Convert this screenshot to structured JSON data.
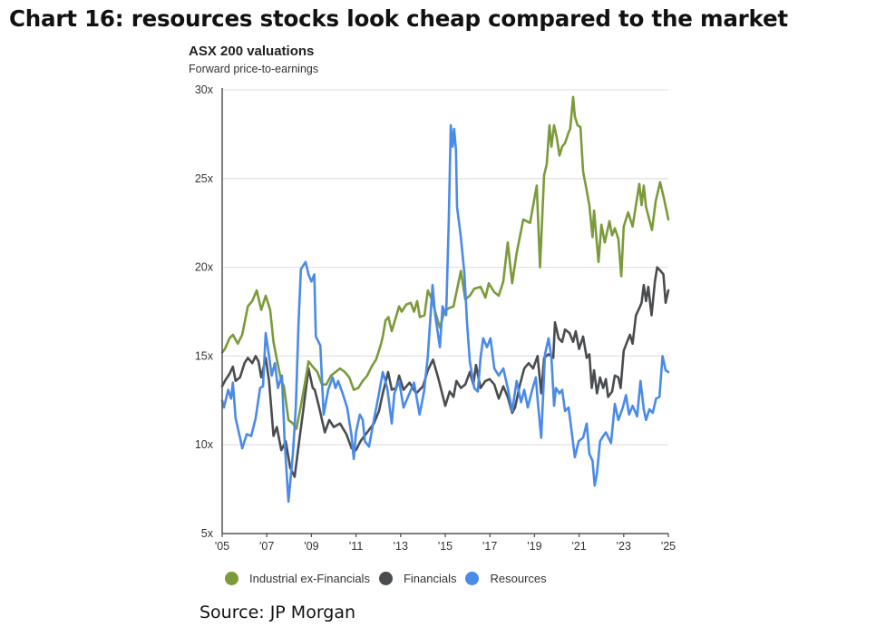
{
  "page": {
    "title": "Chart 16: resources stocks look cheap compared to the market",
    "source": "Source: JP Morgan"
  },
  "chart_data": {
    "type": "line",
    "title": "ASX 200 valuations",
    "subtitle": "Forward price-to-earnings",
    "xlabel": "",
    "ylabel": "",
    "xlim": [
      2005,
      2025
    ],
    "ylim": [
      5,
      30
    ],
    "grid": true,
    "legend_position": "bottom",
    "x_ticks": [
      2005,
      2007,
      2009,
      2011,
      2013,
      2015,
      2017,
      2019,
      2021,
      2023,
      2025
    ],
    "x_tick_labels": [
      "'05",
      "'07",
      "'09",
      "'11",
      "'13",
      "'15",
      "'17",
      "'19",
      "'21",
      "'23",
      "'25"
    ],
    "y_ticks": [
      5,
      10,
      15,
      20,
      25,
      30
    ],
    "y_tick_labels": [
      "5x",
      "10x",
      "15x",
      "20x",
      "25x",
      "30x"
    ],
    "series": [
      {
        "name": "Industrial ex-Financials",
        "color": "#7b9a3a",
        "x": [
          2005.0,
          2005.12,
          2005.33,
          2005.48,
          2005.7,
          2005.9,
          2006.15,
          2006.35,
          2006.55,
          2006.75,
          2006.95,
          2007.15,
          2007.3,
          2007.45,
          2007.65,
          2007.77,
          2007.97,
          2008.17,
          2008.33,
          2008.53,
          2008.74,
          2008.87,
          2009.06,
          2009.27,
          2009.47,
          2009.67,
          2009.88,
          2010.08,
          2010.28,
          2010.5,
          2010.7,
          2010.9,
          2011.1,
          2011.3,
          2011.5,
          2011.7,
          2011.9,
          2012.1,
          2012.2,
          2012.32,
          2012.45,
          2012.6,
          2012.72,
          2012.93,
          2013.05,
          2013.25,
          2013.45,
          2013.6,
          2013.74,
          2013.86,
          2014.07,
          2014.22,
          2014.43,
          2014.55,
          2014.76,
          2014.96,
          2015.16,
          2015.37,
          2015.57,
          2015.7,
          2015.9,
          2016.1,
          2016.3,
          2016.58,
          2016.8,
          2016.95,
          2017.2,
          2017.4,
          2017.6,
          2017.8,
          2018.0,
          2018.2,
          2018.5,
          2018.8,
          2019.0,
          2019.1,
          2019.25,
          2019.43,
          2019.55,
          2019.67,
          2019.76,
          2019.88,
          2020.0,
          2020.12,
          2020.24,
          2020.37,
          2020.53,
          2020.6,
          2020.73,
          2020.81,
          2020.93,
          2021.06,
          2021.18,
          2021.33,
          2021.46,
          2021.6,
          2021.67,
          2021.8,
          2021.87,
          2022.0,
          2022.15,
          2022.36,
          2022.48,
          2022.6,
          2022.76,
          2022.89,
          2023.0,
          2023.2,
          2023.4,
          2023.7,
          2023.8,
          2023.9,
          2024.0,
          2024.27,
          2024.43,
          2024.63,
          2024.8,
          2025.0
        ],
        "values": [
          15.2,
          15.4,
          16.0,
          16.2,
          15.7,
          16.2,
          17.8,
          18.1,
          18.7,
          17.6,
          18.4,
          17.6,
          15.8,
          14.8,
          13.6,
          13.3,
          11.4,
          11.2,
          10.9,
          12.2,
          13.7,
          14.7,
          14.4,
          14.1,
          13.4,
          13.4,
          13.9,
          14.1,
          14.3,
          14.1,
          13.8,
          13.1,
          13.2,
          13.6,
          13.9,
          14.4,
          14.8,
          15.6,
          16.1,
          17.0,
          17.2,
          16.4,
          16.9,
          17.8,
          17.5,
          17.9,
          18.0,
          17.5,
          18.1,
          17.2,
          17.3,
          18.7,
          18.1,
          17.5,
          16.6,
          17.5,
          17.7,
          17.8,
          19.0,
          19.8,
          18.2,
          18.4,
          18.8,
          18.9,
          18.3,
          19.1,
          18.6,
          18.4,
          19.2,
          21.4,
          19.1,
          20.8,
          22.7,
          22.5,
          23.9,
          24.6,
          20.0,
          25.2,
          25.8,
          28.0,
          26.8,
          28.0,
          27.3,
          26.3,
          26.8,
          27.0,
          27.6,
          27.8,
          29.6,
          28.5,
          28.0,
          27.9,
          25.4,
          24.4,
          23.5,
          21.7,
          23.2,
          21.3,
          20.3,
          22.4,
          21.4,
          22.6,
          21.8,
          22.2,
          21.6,
          19.5,
          22.3,
          23.1,
          22.3,
          24.7,
          23.5,
          24.6,
          23.4,
          22.1,
          23.7,
          24.8,
          23.9,
          22.7
        ]
      },
      {
        "name": "Financials",
        "color": "#4a4d50",
        "x": [
          2005.0,
          2005.12,
          2005.33,
          2005.48,
          2005.6,
          2005.8,
          2006.0,
          2006.15,
          2006.35,
          2006.5,
          2006.63,
          2006.75,
          2006.95,
          2007.1,
          2007.3,
          2007.45,
          2007.65,
          2007.85,
          2008.05,
          2008.25,
          2008.45,
          2008.65,
          2008.87,
          2009.06,
          2009.15,
          2009.35,
          2009.6,
          2009.8,
          2010.0,
          2010.28,
          2010.57,
          2010.8,
          2011.0,
          2011.2,
          2011.5,
          2011.8,
          2012.03,
          2012.2,
          2012.44,
          2012.6,
          2012.8,
          2012.93,
          2013.13,
          2013.4,
          2013.7,
          2014.0,
          2014.22,
          2014.45,
          2014.7,
          2015.0,
          2015.2,
          2015.37,
          2015.5,
          2015.7,
          2015.9,
          2016.1,
          2016.26,
          2016.38,
          2016.58,
          2016.8,
          2016.99,
          2017.2,
          2017.4,
          2017.6,
          2017.8,
          2018.0,
          2018.13,
          2018.33,
          2018.54,
          2018.74,
          2018.94,
          2019.14,
          2019.3,
          2019.43,
          2019.63,
          2019.84,
          2019.92,
          2020.08,
          2020.24,
          2020.37,
          2020.57,
          2020.73,
          2020.85,
          2021.0,
          2021.18,
          2021.34,
          2021.46,
          2021.57,
          2021.67,
          2021.8,
          2021.94,
          2022.08,
          2022.2,
          2022.3,
          2022.48,
          2022.6,
          2022.76,
          2022.86,
          2023.0,
          2023.15,
          2023.28,
          2023.4,
          2023.55,
          2023.7,
          2023.8,
          2023.9,
          2024.0,
          2024.1,
          2024.25,
          2024.4,
          2024.5,
          2024.65,
          2024.78,
          2024.88,
          2025.0
        ],
        "values": [
          13.3,
          13.6,
          14.0,
          14.4,
          13.6,
          13.8,
          14.6,
          14.9,
          14.6,
          15.0,
          14.7,
          13.8,
          14.9,
          13.6,
          10.5,
          11.0,
          9.7,
          10.2,
          8.7,
          8.2,
          10.2,
          12.1,
          14.3,
          13.2,
          13.1,
          12.1,
          10.7,
          11.4,
          11.0,
          11.2,
          10.6,
          9.8,
          9.7,
          10.2,
          10.7,
          11.2,
          11.9,
          12.9,
          14.1,
          13.1,
          13.2,
          13.9,
          13.1,
          13.5,
          12.9,
          13.3,
          14.2,
          14.8,
          13.7,
          12.2,
          13.0,
          12.7,
          13.6,
          13.2,
          13.4,
          14.1,
          13.4,
          14.5,
          13.2,
          13.6,
          13.7,
          13.4,
          12.6,
          13.3,
          12.7,
          11.8,
          12.1,
          13.3,
          14.3,
          14.6,
          14.3,
          15.0,
          12.9,
          14.9,
          15.1,
          14.9,
          16.9,
          16.0,
          15.8,
          16.5,
          16.3,
          15.8,
          16.4,
          15.4,
          16.1,
          14.9,
          15.1,
          13.2,
          14.2,
          12.9,
          13.8,
          13.2,
          13.7,
          12.7,
          13.0,
          13.9,
          13.8,
          13.2,
          15.3,
          15.8,
          16.2,
          15.7,
          17.3,
          17.7,
          18.0,
          19.0,
          18.1,
          18.9,
          17.3,
          19.2,
          20.0,
          19.8,
          19.6,
          18.0,
          18.7
        ]
      },
      {
        "name": "Resources",
        "color": "#4a8ae8",
        "x": [
          2005.0,
          2005.08,
          2005.27,
          2005.4,
          2005.48,
          2005.6,
          2005.8,
          2005.9,
          2006.1,
          2006.3,
          2006.5,
          2006.7,
          2006.83,
          2006.95,
          2007.1,
          2007.22,
          2007.36,
          2007.5,
          2007.68,
          2007.8,
          2007.97,
          2008.17,
          2008.3,
          2008.42,
          2008.53,
          2008.74,
          2008.87,
          2009.0,
          2009.13,
          2009.2,
          2009.4,
          2009.55,
          2009.75,
          2009.95,
          2010.08,
          2010.2,
          2010.4,
          2010.6,
          2010.8,
          2010.9,
          2011.0,
          2011.17,
          2011.3,
          2011.4,
          2011.58,
          2011.8,
          2012.0,
          2012.2,
          2012.4,
          2012.6,
          2012.72,
          2012.93,
          2013.13,
          2013.33,
          2013.6,
          2013.85,
          2014.05,
          2014.22,
          2014.43,
          2014.55,
          2014.76,
          2014.88,
          2015.04,
          2015.16,
          2015.25,
          2015.33,
          2015.4,
          2015.48,
          2015.53,
          2015.7,
          2015.86,
          2015.98,
          2016.1,
          2016.3,
          2016.46,
          2016.58,
          2016.7,
          2016.87,
          2017.03,
          2017.2,
          2017.4,
          2017.6,
          2017.8,
          2018.0,
          2018.2,
          2018.4,
          2018.54,
          2018.7,
          2018.9,
          2019.06,
          2019.15,
          2019.3,
          2019.47,
          2019.63,
          2019.76,
          2019.88,
          2019.96,
          2020.12,
          2020.24,
          2020.37,
          2020.53,
          2020.65,
          2020.81,
          2020.98,
          2021.18,
          2021.34,
          2021.46,
          2021.6,
          2021.7,
          2021.8,
          2021.94,
          2022.08,
          2022.2,
          2022.43,
          2022.6,
          2022.76,
          2022.96,
          2023.1,
          2023.24,
          2023.4,
          2023.6,
          2023.75,
          2023.9,
          2024.0,
          2024.15,
          2024.3,
          2024.45,
          2024.6,
          2024.74,
          2024.88,
          2025.0
        ],
        "values": [
          12.5,
          12.1,
          13.1,
          12.6,
          13.5,
          11.5,
          10.4,
          9.8,
          10.6,
          10.5,
          11.5,
          13.2,
          13.3,
          16.3,
          15.0,
          13.9,
          14.6,
          13.2,
          13.9,
          10.2,
          6.8,
          9.5,
          12.1,
          16.7,
          19.9,
          20.3,
          19.6,
          19.2,
          19.6,
          16.1,
          15.6,
          11.7,
          13.1,
          13.8,
          13.2,
          13.6,
          12.9,
          12.1,
          10.5,
          9.2,
          10.7,
          11.7,
          11.4,
          10.2,
          9.9,
          11.4,
          12.7,
          14.1,
          13.2,
          11.2,
          12.9,
          13.6,
          12.1,
          12.7,
          13.5,
          11.7,
          13.0,
          15.0,
          19.0,
          17.3,
          15.5,
          17.8,
          17.3,
          22.7,
          28.0,
          26.8,
          27.8,
          26.6,
          23.4,
          21.7,
          19.6,
          16.8,
          14.7,
          13.2,
          13.0,
          14.9,
          16.0,
          15.5,
          16.0,
          14.3,
          13.9,
          14.3,
          13.2,
          11.9,
          13.6,
          12.4,
          13.1,
          12.1,
          13.1,
          13.8,
          12.4,
          10.4,
          15.1,
          16.0,
          14.9,
          12.2,
          13.2,
          12.9,
          13.1,
          11.9,
          12.1,
          10.9,
          9.3,
          10.2,
          10.4,
          11.2,
          9.5,
          9.1,
          7.7,
          8.4,
          10.2,
          10.5,
          10.7,
          10.1,
          12.3,
          11.4,
          12.1,
          12.8,
          11.7,
          12.2,
          11.6,
          13.6,
          12.0,
          11.4,
          12.0,
          11.8,
          12.6,
          12.7,
          15.0,
          14.2,
          14.1
        ]
      }
    ]
  }
}
